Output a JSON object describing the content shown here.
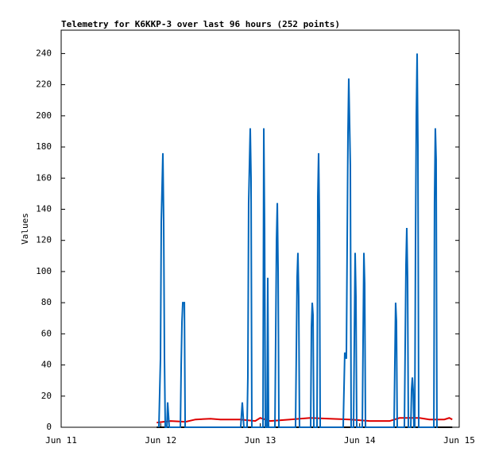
{
  "chart_data": {
    "type": "line",
    "title": "Telemetry for K6KKP-3 over last 96 hours (252 points)",
    "y_label": "Values",
    "xlim": [
      11,
      15
    ],
    "xticks": [
      {
        "value": 11,
        "label": "Jun 11"
      },
      {
        "value": 12,
        "label": "Jun 12"
      },
      {
        "value": 13,
        "label": "Jun 13"
      },
      {
        "value": 14,
        "label": "Jun 14"
      },
      {
        "value": 15,
        "label": "Jun 15"
      }
    ],
    "ylim": [
      0,
      255
    ],
    "yticks": [
      0,
      20,
      40,
      60,
      80,
      100,
      120,
      140,
      160,
      180,
      200,
      220,
      240
    ],
    "series": [
      {
        "color": "#000000",
        "x": [
          11.96,
          14.93
        ],
        "values": [
          0,
          0
        ]
      },
      {
        "color": "#dd0000",
        "x": [
          11.96,
          12.1,
          12.25,
          12.35,
          12.5,
          12.6,
          12.8,
          12.95,
          13.0,
          13.1,
          13.3,
          13.5,
          13.7,
          13.9,
          14.0,
          14.1,
          14.3,
          14.4,
          14.6,
          14.7,
          14.85,
          14.9,
          14.93
        ],
        "values": [
          3,
          4,
          3.5,
          5,
          5.5,
          5,
          5,
          4,
          6,
          4,
          5,
          6,
          5.5,
          5,
          4.5,
          4,
          4,
          6,
          6,
          5,
          5,
          6,
          5
        ]
      },
      {
        "color": "#0066bb",
        "x": [
          11.982,
          11.998,
          12.006,
          12.022,
          12.03,
          12.038,
          12.046,
          12.062,
          12.07,
          12.078,
          12.086,
          12.198,
          12.206,
          12.214,
          12.222,
          12.238,
          12.246,
          12.804,
          12.82,
          12.828,
          12.836,
          12.868,
          12.876,
          12.884,
          12.9,
          12.908,
          12.916,
          13.028,
          13.036,
          13.044,
          13.052,
          13.068,
          13.076,
          13.084,
          13.148,
          13.164,
          13.172,
          13.18,
          13.188,
          13.355,
          13.371,
          13.379,
          13.387,
          13.395,
          13.507,
          13.515,
          13.523,
          13.531,
          13.539,
          13.571,
          13.579,
          13.587,
          13.595,
          13.603,
          13.834,
          13.85,
          13.866,
          13.882,
          13.89,
          13.906,
          13.914,
          13.938,
          13.954,
          13.962,
          13.97,
          14.026,
          14.042,
          14.05,
          14.058,
          14.345,
          14.361,
          14.369,
          14.377,
          14.449,
          14.465,
          14.473,
          14.481,
          14.489,
          14.513,
          14.521,
          14.529,
          14.537,
          14.545,
          14.553,
          14.561,
          14.569,
          14.577,
          14.585,
          14.593,
          14.745,
          14.752,
          14.76,
          14.768,
          14.776,
          14.784
        ],
        "values": [
          0,
          44,
          132,
          176,
          132,
          44,
          0,
          0,
          16,
          8,
          0,
          0,
          40,
          68,
          80,
          80,
          0,
          0,
          16,
          8,
          0,
          0,
          32,
          144,
          192,
          160,
          0,
          0,
          192,
          128,
          0,
          0,
          96,
          0,
          0,
          120,
          144,
          100,
          0,
          0,
          96,
          112,
          84,
          0,
          0,
          64,
          80,
          72,
          0,
          0,
          148,
          176,
          132,
          0,
          0,
          48,
          44,
          188,
          224,
          168,
          0,
          0,
          112,
          84,
          0,
          0,
          112,
          92,
          0,
          0,
          80,
          68,
          0,
          0,
          104,
          128,
          96,
          0,
          0,
          24,
          32,
          24,
          0,
          0,
          120,
          200,
          240,
          180,
          0,
          0,
          144,
          192,
          172,
          0,
          0
        ]
      }
    ]
  }
}
